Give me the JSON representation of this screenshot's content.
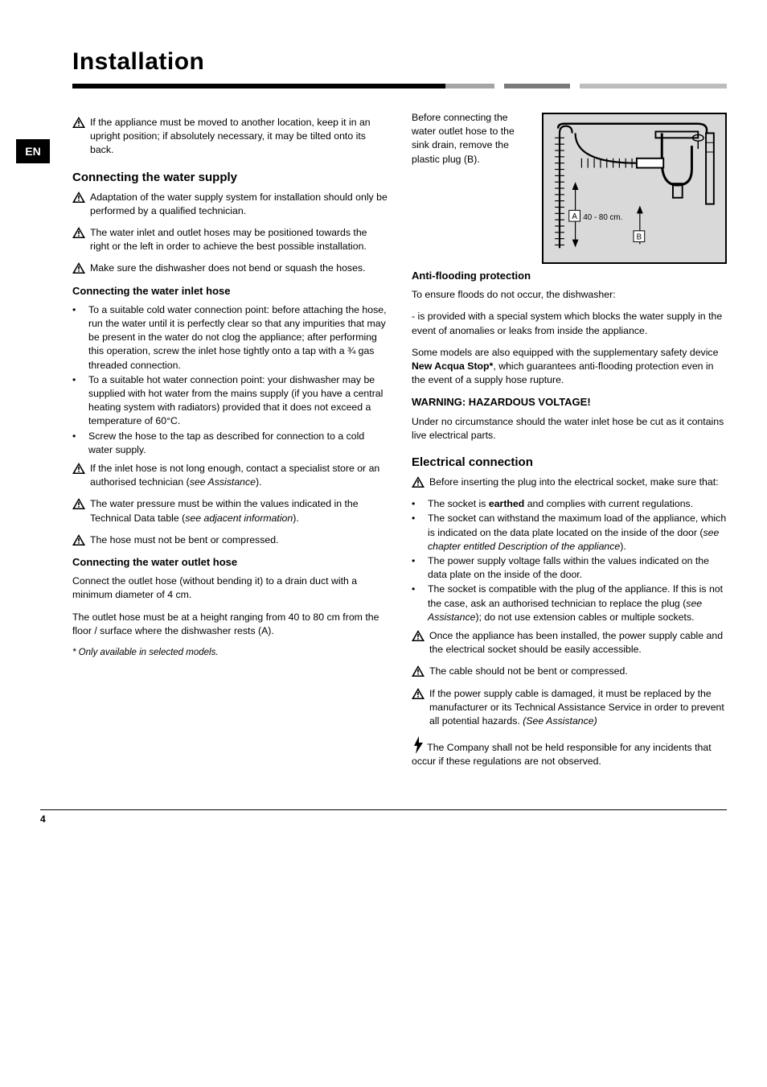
{
  "page_number_top": "4",
  "page_number_bottom": "4",
  "lang_badge": "EN",
  "title": "Installation",
  "rule_segments": [
    {
      "w": 57,
      "c": "#000000"
    },
    {
      "w": 7.5,
      "c": "#a5a5a5"
    },
    {
      "w": 1.5,
      "c": "#ffffff"
    },
    {
      "w": 10,
      "c": "#7a7a7a"
    },
    {
      "w": 1.5,
      "c": "#ffffff"
    },
    {
      "w": 22.5,
      "c": "#bcbcbc"
    }
  ],
  "left": {
    "w1": "If the appliance must be moved to another location, keep it in an upright position; if absolutely necessary, it may be tilted onto its back.",
    "h2_conn": "Connecting the water supply",
    "w2": "Adaptation of the water supply system for installation should only be performed by a qualified technician.",
    "w3": "The water inlet and outlet hoses may be positioned towards the right or the left in order to achieve the best possible installation.",
    "w4": "Make sure the dishwasher does not bend or squash the hoses.",
    "h3_inlet": "Connecting the water inlet hose",
    "inlet_bullets": [
      "To a suitable cold water connection point: before attaching the hose, run the water until it is perfectly clear so that any impurities that may be present in the water do not clog the appliance; after performing this operation, screw the inlet hose tightly onto a tap with a ¾ gas threaded connection.",
      "To a suitable hot water connection point: your dishwasher may be supplied with hot water from the mains supply (if you have a central heating system with radiators) provided that it does not exceed a temperature of 60°C.",
      "Screw the hose to the tap as described for connection to a cold water supply."
    ],
    "w_inlet_len": "If the inlet hose is not long enough, contact a specialist store or an authorised technician (<i>see Assistance</i>).",
    "w_inlet_press": "The water pressure must be within the values indicated in the Technical Data table (<i>see adjacent information</i>).",
    "w_inlet_bend": "The hose must not be bent or compressed.",
    "h3_outlet": "Connecting the water outlet hose",
    "outlet_p1": "Connect the outlet hose (without bending it) to a drain duct with a minimum diameter of 4 cm.",
    "outlet_p2": "The outlet hose must be at a height ranging from 40 to 80 cm from the floor / surface where the dishwasher rests (A)."
  },
  "right": {
    "diagram_label_A": "A",
    "diagram_label_B": "B",
    "diagram_range": "40 - 80 cm.",
    "p_plug": "Before connecting the water outlet hose to the sink drain, remove the plastic plug (B).",
    "h3_flood": "Anti-flooding protection",
    "flood_intro": "To ensure floods do not occur, the dishwasher:",
    "flood_p1": "- is provided with a special system which blocks the water supply in the event of anomalies or leaks from inside the appliance.",
    "flood_p2": "Some models are also equipped with the supplementary safety device <b>New Acqua Stop*</b>, which guarantees anti-flooding protection even in the event of a supply hose rupture.",
    "h3_warning": "WARNING: HAZARDOUS VOLTAGE!",
    "warn_text": "Under no circumstance should the water inlet hose be cut as it contains live electrical parts.",
    "h2_elec": "Electrical connection",
    "w_elec1": "Before inserting the plug into the electrical socket, make sure that:",
    "elec_bullets": [
      "The socket is <b>earthed</b> and complies with current regulations.",
      "The socket can withstand the maximum load of the appliance, which is indicated on the data plate located on the inside of the door (<i>see chapter entitled Description of the appliance</i>).",
      "The power supply voltage falls within the values indicated on the data plate on the inside of the door.",
      "The socket is compatible with the plug of the appliance. If this is not the case, ask an authorised technician to replace the plug (<i>see Assistance</i>); do not use extension cables or multiple sockets."
    ],
    "w_elec2": "Once the appliance has been installed, the power supply cable and the electrical socket should be easily accessible.",
    "w_elec3": "The cable should not be bent or compressed.",
    "w_elec4": "If the power supply cable is damaged, it must be replaced by the manufacturer or its Technical Assistance Service in order to prevent all potential hazards. <i>(See Assistance)</i>",
    "bolt_note": "The Company shall not be held responsible for any incidents that occur if these regulations are not observed."
  },
  "asterisk": "* Only available in selected models.",
  "diagram": {
    "bg": "#d9d9d9",
    "line": "#000000"
  }
}
